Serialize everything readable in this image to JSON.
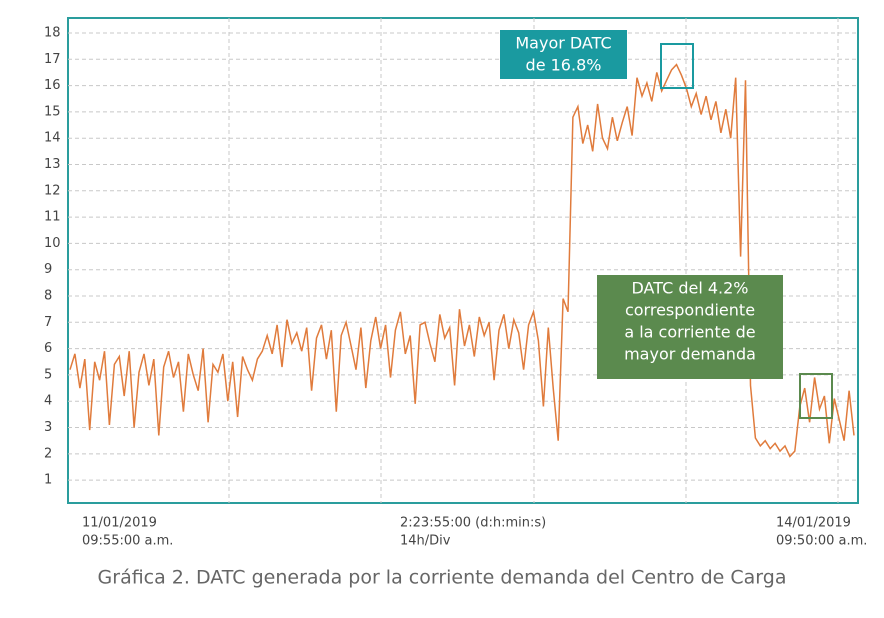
{
  "chart_data": {
    "type": "line",
    "caption": "Gráfica 2. DATC generada por la corriente demanda del Centro de Carga",
    "x_labels": [
      [
        "11/01/2019",
        "09:55:00 a.m."
      ],
      [
        "2:23:55:00 (d:h:min:s)",
        "14h/Div"
      ],
      [
        "14/01/2019",
        "09:50:00 a.m."
      ]
    ],
    "annotations": [
      {
        "lines": [
          "Mayor DATC",
          "de 16.8%"
        ],
        "color": "#1a9aa0"
      },
      {
        "lines": [
          "DATC del 4.2%",
          "correspondiente",
          "a la corriente de",
          "mayor demanda"
        ],
        "color": "#5b8a4e"
      }
    ],
    "color": "#e07b3c",
    "ylim": [
      0.13,
      18.57
    ],
    "yticks": [
      1,
      2,
      3,
      4,
      5,
      6,
      7,
      8,
      9,
      10,
      11,
      12,
      13,
      14,
      15,
      16,
      17,
      18
    ],
    "grid": true,
    "values": [
      5.2,
      5.8,
      4.5,
      5.6,
      2.9,
      5.5,
      4.8,
      5.9,
      3.1,
      5.4,
      5.7,
      4.2,
      5.9,
      3.0,
      5.1,
      5.8,
      4.6,
      5.6,
      2.7,
      5.3,
      5.9,
      4.9,
      5.5,
      3.6,
      5.8,
      5.0,
      4.4,
      6.0,
      3.2,
      5.4,
      5.1,
      5.8,
      4.0,
      5.5,
      3.4,
      5.7,
      5.2,
      4.8,
      5.6,
      5.9,
      6.5,
      5.8,
      6.9,
      5.3,
      7.1,
      6.2,
      6.6,
      5.9,
      6.8,
      4.4,
      6.4,
      6.9,
      5.6,
      6.7,
      3.6,
      6.5,
      7.0,
      6.1,
      5.2,
      6.8,
      4.5,
      6.3,
      7.2,
      6.0,
      6.9,
      4.9,
      6.7,
      7.4,
      5.8,
      6.5,
      3.9,
      6.9,
      7.0,
      6.2,
      5.5,
      7.3,
      6.4,
      6.8,
      4.6,
      7.5,
      6.1,
      6.9,
      5.7,
      7.2,
      6.5,
      7.0,
      4.8,
      6.7,
      7.3,
      6.0,
      7.1,
      6.6,
      5.2,
      6.9,
      7.4,
      6.3,
      3.8,
      6.8,
      4.5,
      2.5,
      7.9,
      7.4,
      14.8,
      15.2,
      13.8,
      14.5,
      13.5,
      15.3,
      14.0,
      13.6,
      14.8,
      13.9,
      14.6,
      15.2,
      14.1,
      16.3,
      15.6,
      16.1,
      15.4,
      16.5,
      15.8,
      16.2,
      16.6,
      16.8,
      16.4,
      15.9,
      15.2,
      15.7,
      14.9,
      15.6,
      14.7,
      15.4,
      14.2,
      15.1,
      14.0,
      16.3,
      9.5,
      16.2,
      4.6,
      2.6,
      2.3,
      2.5,
      2.2,
      2.4,
      2.1,
      2.3,
      1.9,
      2.1,
      3.8,
      4.5,
      3.2,
      4.9,
      3.7,
      4.2,
      2.4,
      4.1,
      3.3,
      2.5,
      4.4,
      2.7
    ]
  }
}
